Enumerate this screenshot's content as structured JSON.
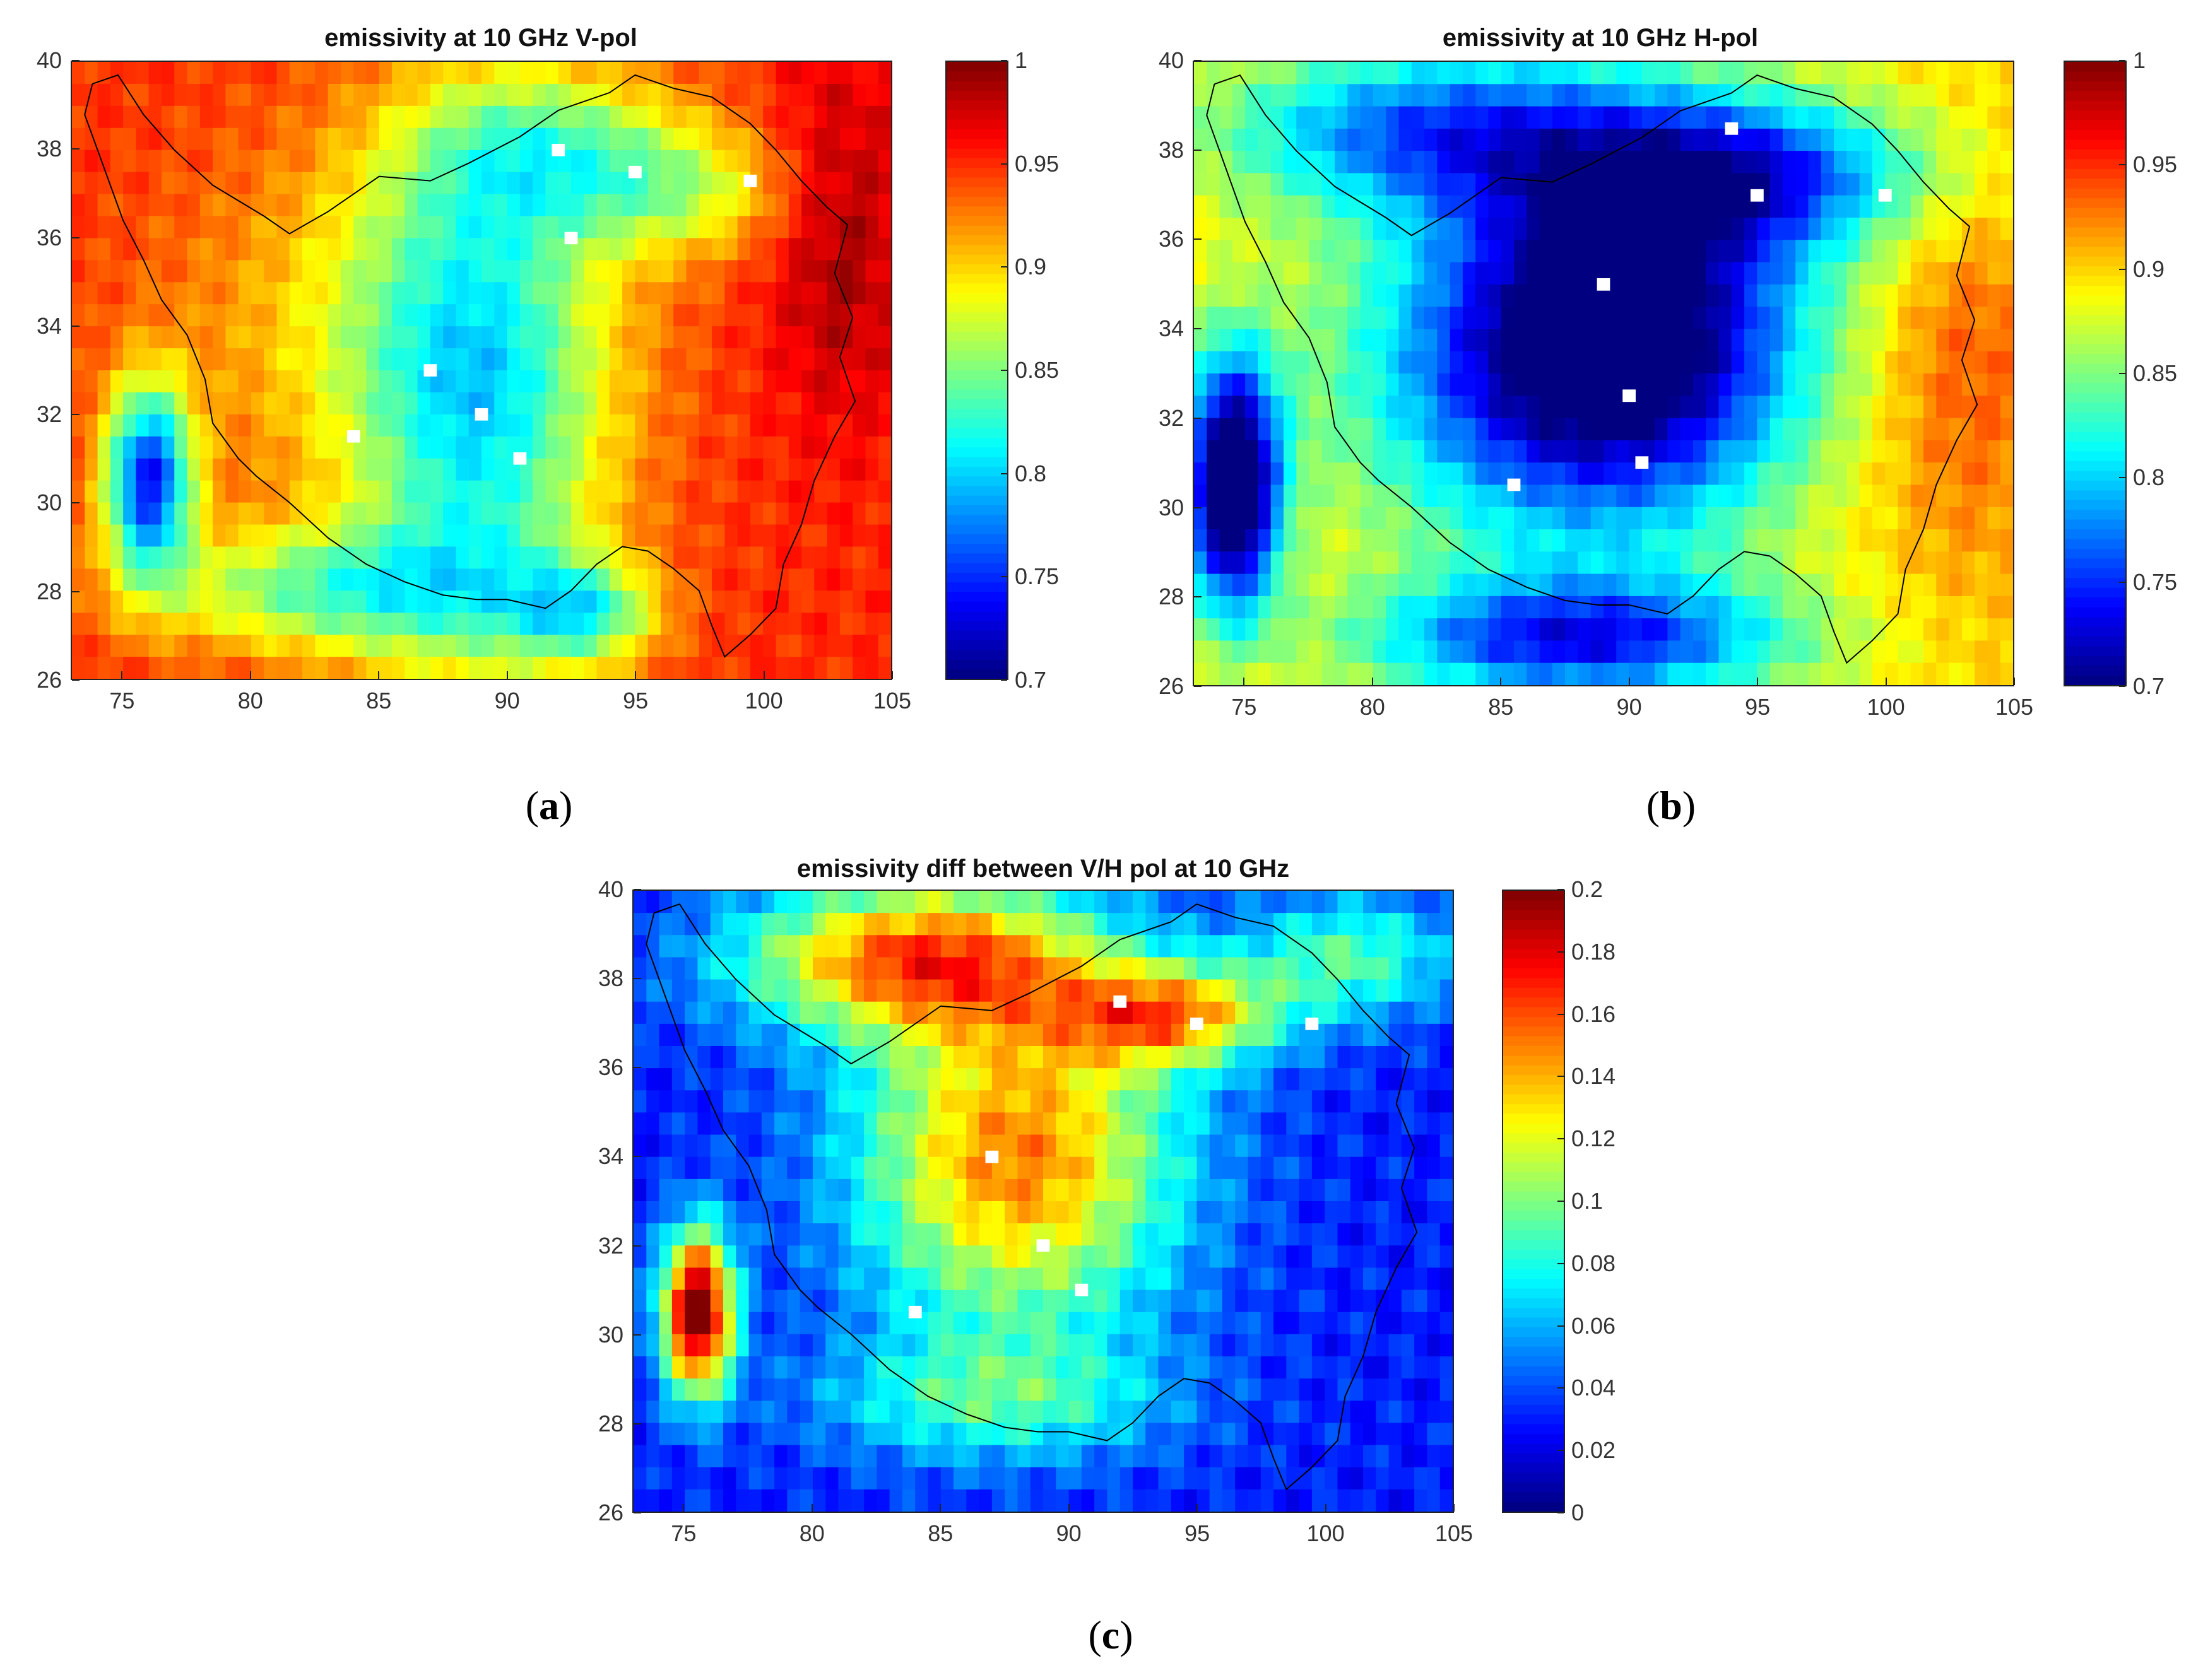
{
  "chart_data": [
    {
      "type": "heatmap",
      "panel_label": "a",
      "title": "emissivity at 10 GHz V-pol",
      "xlabel": "",
      "ylabel": "",
      "xlim": [
        73,
        105
      ],
      "ylim": [
        26,
        40
      ],
      "x_ticks": [
        "75",
        "80",
        "85",
        "90",
        "95",
        "100",
        "105"
      ],
      "y_ticks": [
        "26",
        "28",
        "30",
        "32",
        "34",
        "36",
        "38",
        "40"
      ],
      "colorbar": {
        "range": [
          0.7,
          1
        ],
        "ticks": [
          "0.7",
          "0.75",
          "0.8",
          "0.85",
          "0.9",
          "0.95",
          "1"
        ],
        "colormap": "jet"
      },
      "field": {
        "background": 0.95,
        "blobs": [
          {
            "x": 89,
            "y": 32,
            "sx": 3.5,
            "sy": 4.5,
            "v": -0.12
          },
          {
            "x": 85,
            "y": 34,
            "sx": 6,
            "sy": 3,
            "v": -0.05
          },
          {
            "x": 92,
            "y": 38,
            "sx": 4,
            "sy": 1.3,
            "v": -0.08
          },
          {
            "x": 76,
            "y": 30.5,
            "sx": 1.2,
            "sy": 1.5,
            "v": -0.2
          },
          {
            "x": 83,
            "y": 28,
            "sx": 5,
            "sy": 1,
            "v": -0.1
          },
          {
            "x": 93,
            "y": 27.5,
            "sx": 2,
            "sy": 0.8,
            "v": -0.1
          },
          {
            "x": 97,
            "y": 37,
            "sx": 3,
            "sy": 1,
            "v": -0.06
          },
          {
            "x": 103,
            "y": 36,
            "sx": 2,
            "sy": 3,
            "v": 0.04
          }
        ]
      },
      "missing_cells": [
        [
          89,
          32
        ],
        [
          90.5,
          31
        ],
        [
          92,
          38
        ],
        [
          95,
          37.5
        ],
        [
          87,
          33
        ],
        [
          92.5,
          36
        ],
        [
          99.5,
          37.3
        ],
        [
          84,
          31.5
        ]
      ]
    },
    {
      "type": "heatmap",
      "panel_label": "b",
      "title": "emissivity at 10 GHz H-pol",
      "xlabel": "",
      "ylabel": "",
      "xlim": [
        73,
        105
      ],
      "ylim": [
        26,
        40
      ],
      "x_ticks": [
        "75",
        "80",
        "85",
        "90",
        "95",
        "100",
        "105"
      ],
      "y_ticks": [
        "26",
        "28",
        "30",
        "32",
        "34",
        "36",
        "38",
        "40"
      ],
      "colorbar": {
        "range": [
          0.7,
          1
        ],
        "ticks": [
          "0.7",
          "0.75",
          "0.8",
          "0.85",
          "0.9",
          "0.95",
          "1"
        ],
        "colormap": "jet"
      },
      "field": {
        "background": 0.9,
        "blobs": [
          {
            "x": 90,
            "y": 34,
            "sx": 5,
            "sy": 3,
            "v": -0.2
          },
          {
            "x": 85,
            "y": 33,
            "sx": 6,
            "sy": 3,
            "v": -0.08
          },
          {
            "x": 95,
            "y": 37.5,
            "sx": 5,
            "sy": 1.2,
            "v": -0.12
          },
          {
            "x": 82,
            "y": 38.5,
            "sx": 6,
            "sy": 1.3,
            "v": -0.12
          },
          {
            "x": 74.5,
            "y": 30.5,
            "sx": 1.3,
            "sy": 2,
            "v": -0.25
          },
          {
            "x": 88,
            "y": 27,
            "sx": 6,
            "sy": 1,
            "v": -0.15
          },
          {
            "x": 103,
            "y": 33,
            "sx": 2.5,
            "sy": 3,
            "v": 0.04
          }
        ]
      },
      "missing_cells": [
        [
          90.5,
          31
        ],
        [
          89,
          35
        ],
        [
          90,
          32.5
        ],
        [
          95,
          37
        ],
        [
          100,
          37
        ],
        [
          94,
          38.5
        ],
        [
          85.5,
          30.5
        ]
      ]
    },
    {
      "type": "heatmap",
      "panel_label": "c",
      "title": "emissivity diff between V/H pol at 10 GHz",
      "xlabel": "",
      "ylabel": "",
      "xlim": [
        73,
        105
      ],
      "ylim": [
        26,
        40
      ],
      "x_ticks": [
        "75",
        "80",
        "85",
        "90",
        "95",
        "100",
        "105"
      ],
      "y_ticks": [
        "26",
        "28",
        "30",
        "32",
        "34",
        "36",
        "38",
        "40"
      ],
      "colorbar": {
        "range": [
          0,
          0.2
        ],
        "ticks": [
          "0",
          "0.02",
          "0.04",
          "0.06",
          "0.08",
          "0.1",
          "0.12",
          "0.14",
          "0.16",
          "0.18",
          "0.2"
        ],
        "colormap": "jet"
      },
      "field": {
        "background": 0.03,
        "blobs": [
          {
            "x": 88,
            "y": 34,
            "sx": 4.5,
            "sy": 2.8,
            "v": 0.12
          },
          {
            "x": 84,
            "y": 38.5,
            "sx": 5,
            "sy": 1.2,
            "v": 0.12
          },
          {
            "x": 94,
            "y": 37.2,
            "sx": 3,
            "sy": 0.8,
            "v": 0.1
          },
          {
            "x": 75.5,
            "y": 30.5,
            "sx": 1,
            "sy": 1.3,
            "v": 0.18
          },
          {
            "x": 87,
            "y": 28.5,
            "sx": 5,
            "sy": 1,
            "v": 0.05
          },
          {
            "x": 101,
            "y": 38.5,
            "sx": 3,
            "sy": 1,
            "v": 0.06
          }
        ]
      },
      "missing_cells": [
        [
          89,
          32
        ],
        [
          90.5,
          31
        ],
        [
          92,
          37.5
        ],
        [
          95,
          37
        ],
        [
          87,
          34
        ],
        [
          99.5,
          37
        ],
        [
          84,
          30.5
        ]
      ]
    }
  ]
}
